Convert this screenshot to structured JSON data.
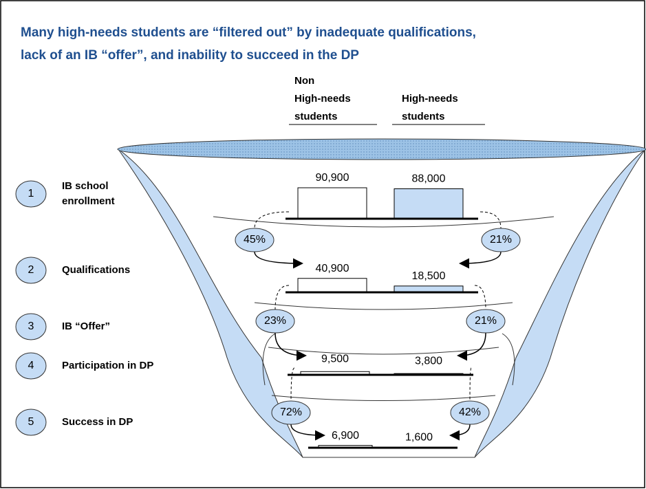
{
  "title": [
    "Many high-needs students are “filtered out” by inadequate qualifications,",
    "lack of an IB “offer”, and inability to succeed in the DP"
  ],
  "columns": [
    [
      "Non",
      "High-needs",
      "students"
    ],
    [
      "High-needs",
      "students"
    ]
  ],
  "stages": [
    {
      "number": "1",
      "label": [
        "IB school",
        "enrollment"
      ]
    },
    {
      "number": "2",
      "label": [
        "Qualifications"
      ]
    },
    {
      "number": "3",
      "label": [
        "IB “Offer”"
      ]
    },
    {
      "number": "4",
      "label": [
        "Participation in DP"
      ]
    },
    {
      "number": "5",
      "label": [
        "Success in DP"
      ]
    }
  ],
  "levels": [
    {
      "non": {
        "value": 90900,
        "label": "90,900"
      },
      "high": {
        "value": 88000,
        "label": "88,000"
      }
    },
    {
      "non": {
        "value": 40900,
        "label": "40,900"
      },
      "high": {
        "value": 18500,
        "label": "18,500"
      }
    },
    {
      "non": {
        "value": 9500,
        "label": "9,500"
      },
      "high": {
        "value": 3800,
        "label": "3,800"
      }
    },
    {
      "non": {
        "value": 6900,
        "label": "6,900"
      },
      "high": {
        "value": 1600,
        "label": "1,600"
      }
    }
  ],
  "rates": [
    {
      "non": {
        "value": 45,
        "label": "45%"
      },
      "high": {
        "value": 21,
        "label": "21%"
      }
    },
    {
      "non": {
        "value": 23,
        "label": "23%"
      },
      "high": {
        "value": 21,
        "label": "21%"
      }
    },
    {
      "non": {
        "value": 72,
        "label": "72%"
      },
      "high": {
        "value": 42,
        "label": "42%"
      }
    }
  ]
}
